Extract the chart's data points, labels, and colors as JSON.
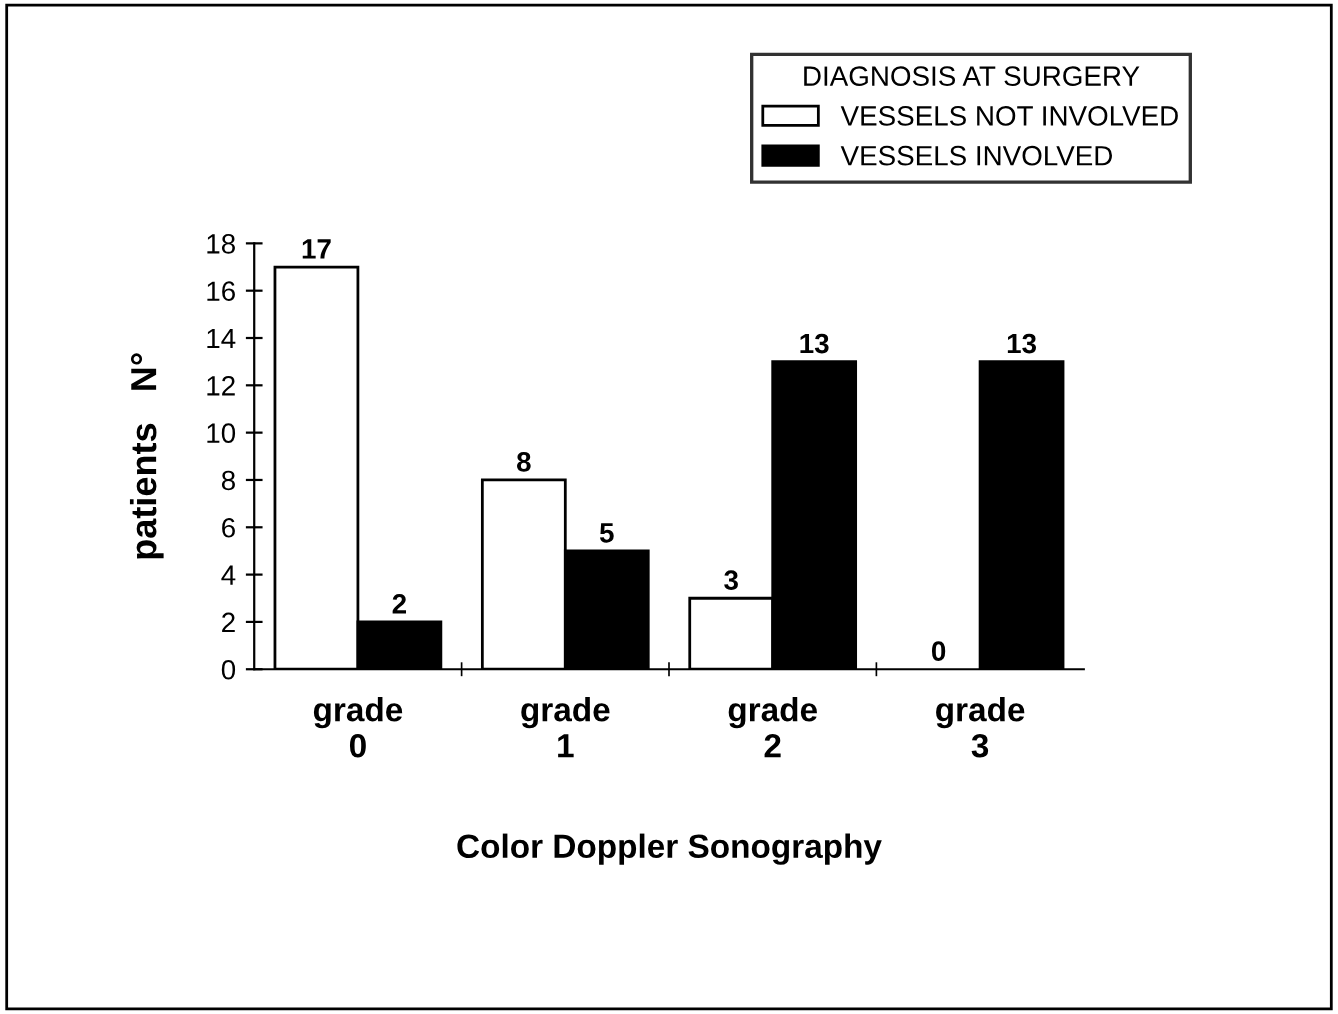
{
  "chart_data": {
    "type": "bar",
    "xlabel": "Color Doppler Sonography",
    "ylabel": "patients   N°",
    "categories": [
      "grade\n0",
      "grade\n1",
      "grade\n2",
      "grade\n3"
    ],
    "series": [
      {
        "name": "VESSELS NOT INVOLVED",
        "color": "#ffffff",
        "values": [
          17,
          8,
          3,
          0
        ]
      },
      {
        "name": "VESSELS INVOLVED",
        "color": "#000000",
        "values": [
          2,
          5,
          13,
          13
        ]
      }
    ],
    "legend_title": "DIAGNOSIS AT SURGERY",
    "legend": "top right",
    "ylim": [
      0,
      18
    ],
    "yticks": [
      0,
      2,
      4,
      6,
      8,
      10,
      12,
      14,
      16,
      18
    ],
    "data_labels": true,
    "grid": false
  }
}
